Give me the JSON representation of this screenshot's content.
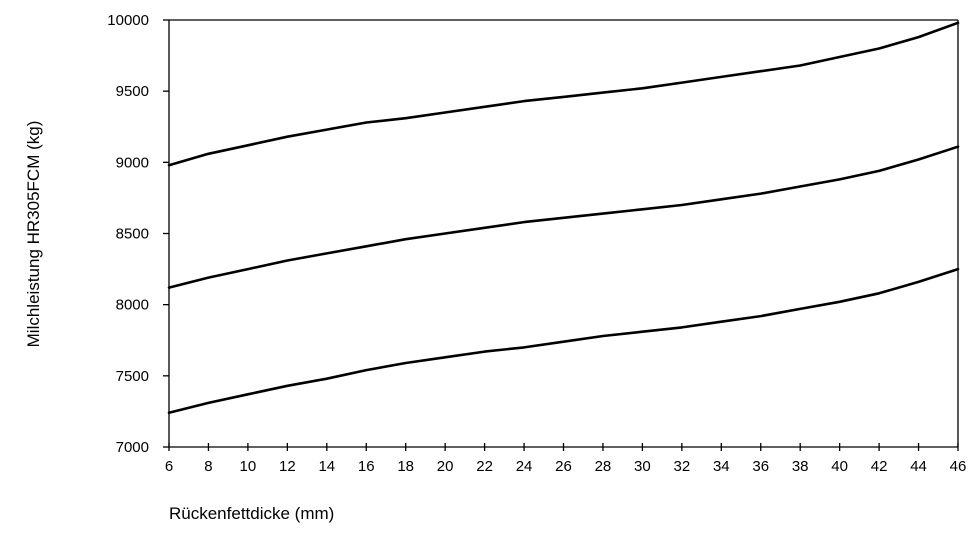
{
  "chart_data": {
    "type": "line",
    "xlabel": "Rückenfettdicke (mm)",
    "ylabel": "Milchleistung HR305FCM (kg)",
    "xlim": [
      6,
      46
    ],
    "ylim": [
      7000,
      10000
    ],
    "x_ticks": [
      6,
      8,
      10,
      12,
      14,
      16,
      18,
      20,
      22,
      24,
      26,
      28,
      30,
      32,
      34,
      36,
      38,
      40,
      42,
      44,
      46
    ],
    "y_ticks": [
      7000,
      7500,
      8000,
      8500,
      9000,
      9500,
      10000
    ],
    "grid": false,
    "legend": "none",
    "line_color": "#000000",
    "x": [
      6,
      8,
      10,
      12,
      14,
      16,
      18,
      20,
      22,
      24,
      26,
      28,
      30,
      32,
      34,
      36,
      38,
      40,
      42,
      44,
      46
    ],
    "series": [
      {
        "values": [
          8980,
          9060,
          9120,
          9180,
          9230,
          9280,
          9310,
          9350,
          9390,
          9430,
          9460,
          9490,
          9520,
          9560,
          9600,
          9640,
          9680,
          9740,
          9800,
          9880,
          9980
        ]
      },
      {
        "values": [
          8120,
          8190,
          8250,
          8310,
          8360,
          8410,
          8460,
          8500,
          8540,
          8580,
          8610,
          8640,
          8670,
          8700,
          8740,
          8780,
          8830,
          8880,
          8940,
          9020,
          9110
        ]
      },
      {
        "values": [
          7240,
          7310,
          7370,
          7430,
          7480,
          7540,
          7590,
          7630,
          7670,
          7700,
          7740,
          7780,
          7810,
          7840,
          7880,
          7920,
          7970,
          8020,
          8080,
          8160,
          8250
        ]
      }
    ]
  }
}
